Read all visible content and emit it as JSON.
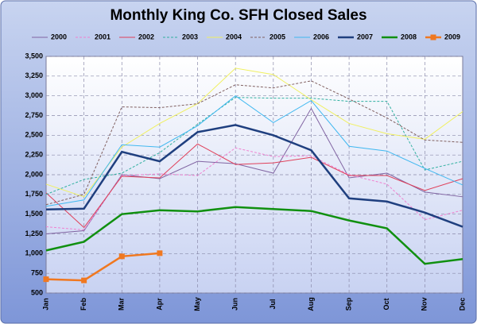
{
  "chart_data": {
    "type": "line",
    "title": "Monthly King Co. SFH Closed Sales",
    "categories": [
      "Jan",
      "Feb",
      "Mar",
      "Apr",
      "May",
      "Jun",
      "Jul",
      "Aug",
      "Sep",
      "Oct",
      "Nov",
      "Dec"
    ],
    "ylim": [
      500,
      3500
    ],
    "yticks": [
      500,
      {
        "value": 750,
        "label": "750"
      },
      {
        "value": 1000,
        "label": "1,000"
      },
      {
        "value": 1250,
        "label": "1,250"
      },
      {
        "value": 1500,
        "label": "1,500"
      },
      {
        "value": 1750,
        "label": "1,750"
      },
      {
        "value": 2000,
        "label": "2,000"
      },
      {
        "value": 2250,
        "label": "2,250"
      },
      {
        "value": 2500,
        "label": "2,500"
      },
      {
        "value": 2750,
        "label": "2,750"
      },
      {
        "value": 3000,
        "label": "3,000"
      },
      {
        "value": 3250,
        "label": "3,250"
      },
      {
        "value": 3500,
        "label": "3,500"
      }
    ],
    "grid": true,
    "legend": "top",
    "series": [
      {
        "name": "2000",
        "color": "#8064a2",
        "dash": false,
        "width": 1,
        "values": [
          1250,
          1290,
          2000,
          1950,
          2170,
          2140,
          2020,
          2840,
          1960,
          2020,
          1780,
          1720
        ]
      },
      {
        "name": "2001",
        "color": "#f080d0",
        "dash": true,
        "width": 1,
        "values": [
          1340,
          1300,
          1990,
          2010,
          1990,
          2340,
          2230,
          2240,
          2000,
          1880,
          1430,
          1550
        ]
      },
      {
        "name": "2002",
        "color": "#e0405a",
        "dash": false,
        "width": 1,
        "values": [
          1770,
          1330,
          1980,
          1960,
          2390,
          2130,
          2150,
          2220,
          1990,
          1990,
          1800,
          1950
        ]
      },
      {
        "name": "2003",
        "color": "#30b0a0",
        "dash": true,
        "width": 1,
        "values": [
          1750,
          1940,
          2020,
          2280,
          2640,
          2980,
          2970,
          2970,
          2930,
          2930,
          2060,
          2170
        ]
      },
      {
        "name": "2004",
        "color": "#f0f060",
        "dash": false,
        "width": 1,
        "values": [
          1880,
          1720,
          2350,
          2650,
          2900,
          3350,
          3270,
          2950,
          2650,
          2520,
          2450,
          2800
        ]
      },
      {
        "name": "2005",
        "color": "#806060",
        "dash": true,
        "width": 1,
        "values": [
          1620,
          1750,
          2860,
          2850,
          2900,
          3140,
          3100,
          3190,
          2960,
          2720,
          2440,
          2410
        ]
      },
      {
        "name": "2006",
        "color": "#40b8f0",
        "dash": false,
        "width": 1,
        "values": [
          1600,
          1680,
          2380,
          2350,
          2620,
          3000,
          2660,
          2940,
          2360,
          2300,
          2080,
          1870
        ]
      },
      {
        "name": "2007",
        "color": "#1f3f7f",
        "dash": false,
        "width": 2.5,
        "values": [
          1560,
          1570,
          2290,
          2170,
          2540,
          2630,
          2500,
          2310,
          1700,
          1660,
          1520,
          1340
        ]
      },
      {
        "name": "2008",
        "color": "#109010",
        "dash": false,
        "width": 2.5,
        "values": [
          1040,
          1150,
          1500,
          1550,
          1535,
          1590,
          1565,
          1540,
          1420,
          1320,
          870,
          930
        ]
      },
      {
        "name": "2009",
        "color": "#f07820",
        "dash": false,
        "width": 2.5,
        "marker": "square",
        "values": [
          675,
          660,
          965,
          1005,
          null,
          null,
          null,
          null,
          null,
          null,
          null,
          null
        ]
      }
    ]
  }
}
